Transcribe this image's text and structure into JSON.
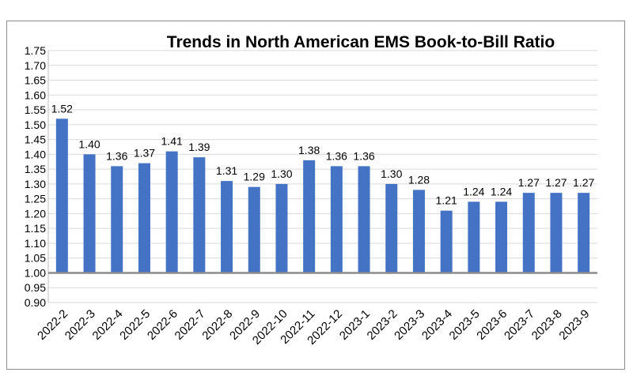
{
  "chart_data": {
    "type": "bar",
    "title": "Trends in North American EMS Book-to-Bill Ratio",
    "xlabel": "",
    "ylabel": "",
    "ylim": [
      0.9,
      1.75
    ],
    "baseline": 1.0,
    "ytick_step": 0.05,
    "grid": true,
    "legend": "none",
    "bar_color": "#4472C4",
    "baseline_color": "#8c8c8c",
    "categories": [
      "2022-2",
      "2022-3",
      "2022-4",
      "2022-5",
      "2022-6",
      "2022-7",
      "2022-8",
      "2022-9",
      "2022-10",
      "2022-11",
      "2022-12",
      "2023-1",
      "2023-2",
      "2023-3",
      "2023-4",
      "2023-5",
      "2023-6",
      "2023-7",
      "2023-8",
      "2023-9"
    ],
    "values": [
      1.52,
      1.4,
      1.36,
      1.37,
      1.41,
      1.39,
      1.31,
      1.29,
      1.3,
      1.38,
      1.36,
      1.36,
      1.3,
      1.28,
      1.21,
      1.24,
      1.24,
      1.27,
      1.27,
      1.27
    ],
    "ytick_labels": [
      "0.90",
      "0.95",
      "1.00",
      "1.05",
      "1.10",
      "1.15",
      "1.20",
      "1.25",
      "1.30",
      "1.35",
      "1.40",
      "1.45",
      "1.50",
      "1.55",
      "1.60",
      "1.65",
      "1.70",
      "1.75"
    ]
  }
}
